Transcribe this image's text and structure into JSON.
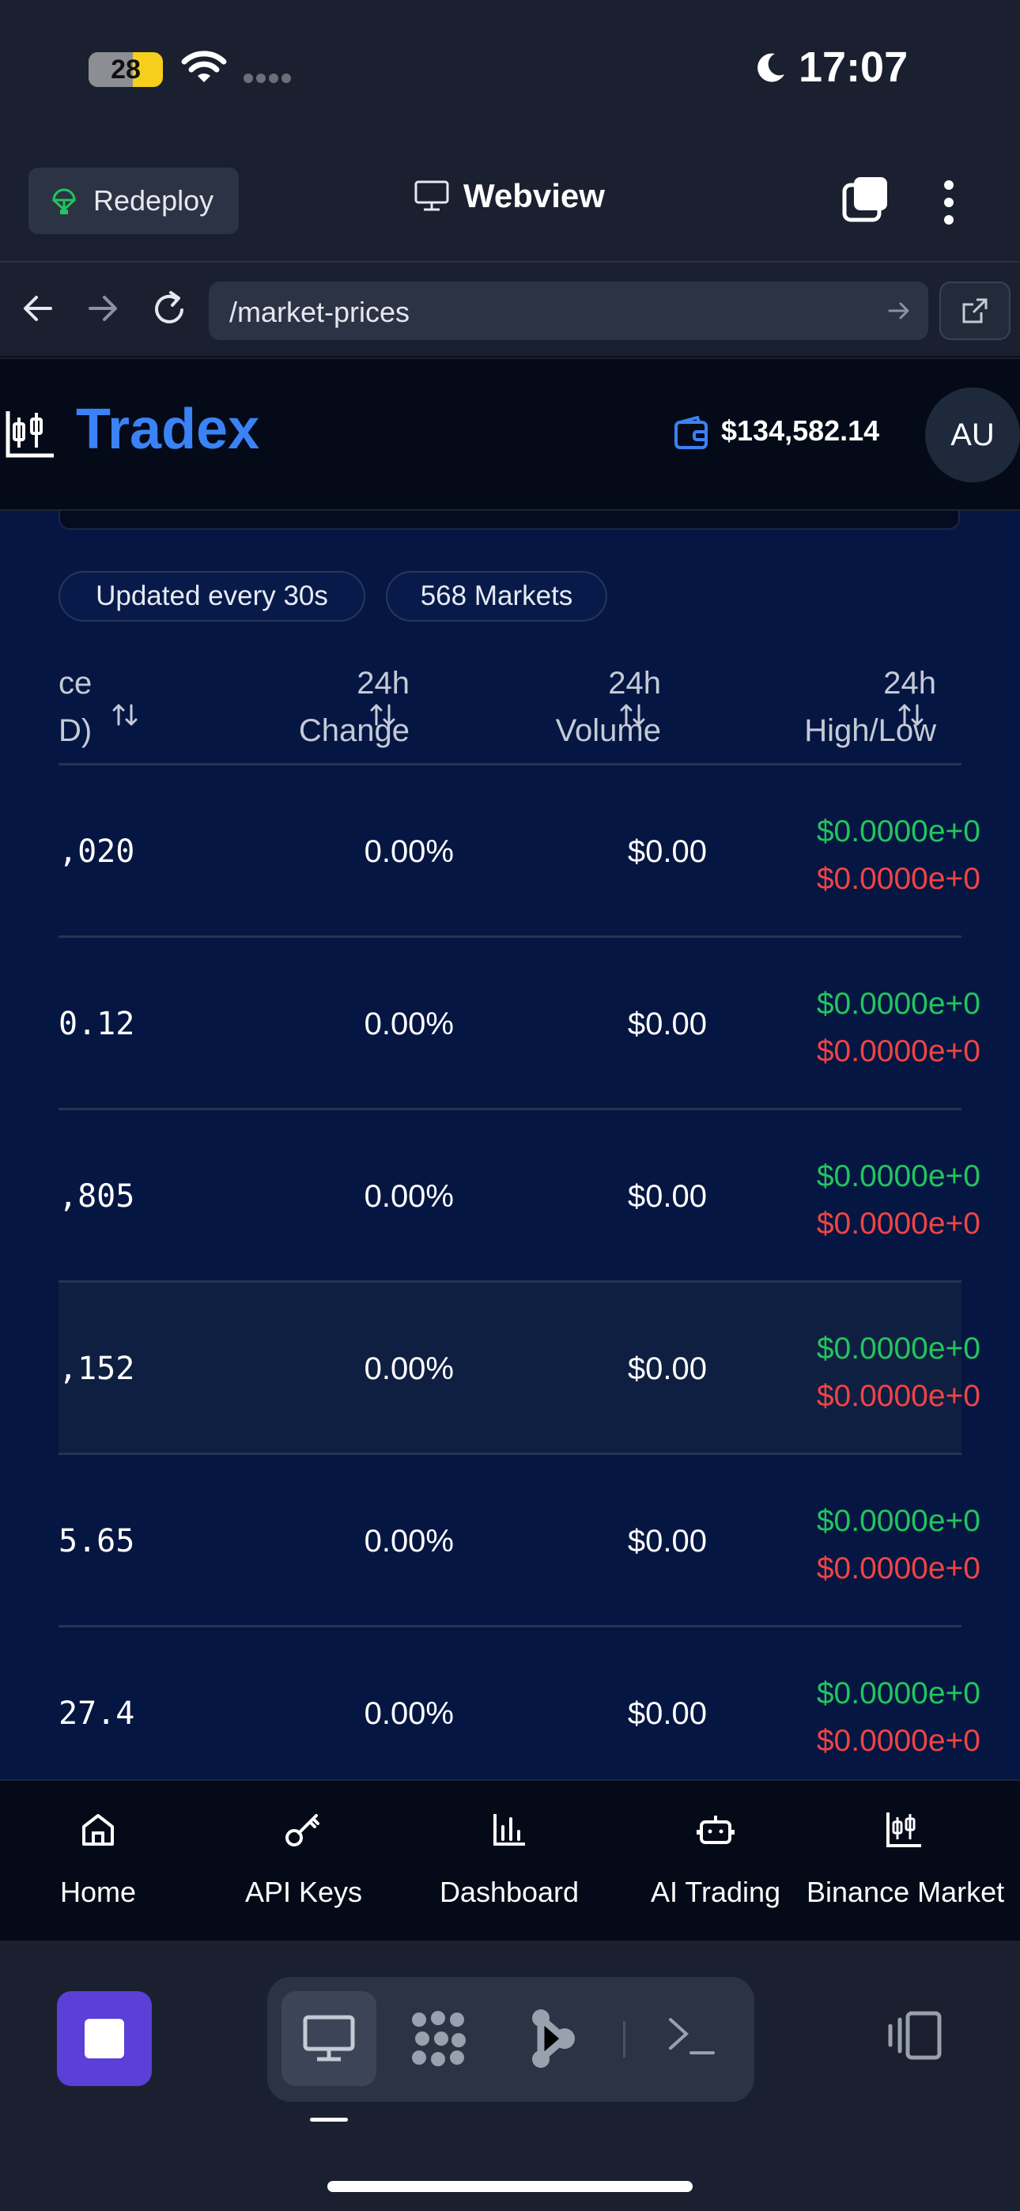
{
  "status_bar": {
    "battery_level": "28",
    "time": "17:07",
    "icons": [
      "battery-icon",
      "wifi-icon",
      "signal-icon",
      "moon-icon"
    ]
  },
  "browser": {
    "redeploy_label": "Redeploy",
    "title": "Webview",
    "url": "/market-prices",
    "icons": [
      "back-icon",
      "forward-icon",
      "reload-icon",
      "go-arrow-icon",
      "external-link-icon",
      "tabs-icon",
      "more-icon"
    ]
  },
  "app": {
    "brand": "Tradex",
    "balance": "$134,582.14",
    "avatar_initials": "AU"
  },
  "filters": {
    "update_pill": "Updated every 30s",
    "markets_pill": "568 Markets"
  },
  "table": {
    "columns": [
      {
        "line1": "ce",
        "line2": "D)"
      },
      {
        "line1": "24h",
        "line2": "Change"
      },
      {
        "line1": "24h",
        "line2": "Volume"
      },
      {
        "line1": "24h",
        "line2": "High/Low"
      }
    ],
    "rows": [
      {
        "price": ",020",
        "change": "0.00%",
        "volume": "$0.00",
        "high": "$0.0000e+0",
        "low": "$0.0000e+0"
      },
      {
        "price": "0.12",
        "change": "0.00%",
        "volume": "$0.00",
        "high": "$0.0000e+0",
        "low": "$0.0000e+0"
      },
      {
        "price": ",805",
        "change": "0.00%",
        "volume": "$0.00",
        "high": "$0.0000e+0",
        "low": "$0.0000e+0"
      },
      {
        "price": ",152",
        "change": "0.00%",
        "volume": "$0.00",
        "high": "$0.0000e+0",
        "low": "$0.0000e+0"
      },
      {
        "price": "5.65",
        "change": "0.00%",
        "volume": "$0.00",
        "high": "$0.0000e+0",
        "low": "$0.0000e+0"
      },
      {
        "price": "27.4",
        "change": "0.00%",
        "volume": "$0.00",
        "high": "$0.0000e+0",
        "low": "$0.0000e+0"
      }
    ]
  },
  "bottom_nav": {
    "items": [
      {
        "label": "Home",
        "icon": "home-icon"
      },
      {
        "label": "API Keys",
        "icon": "key-icon"
      },
      {
        "label": "Dashboard",
        "icon": "bar-chart-icon"
      },
      {
        "label": "AI Trading",
        "icon": "bot-icon"
      },
      {
        "label": "Binance Market",
        "icon": "candlestick-icon"
      }
    ]
  },
  "colors": {
    "brand": "#3b82f6",
    "positive": "#22c55e",
    "negative": "#ef4444",
    "content_bg": "#061642",
    "stop_button": "#5b3fd6"
  }
}
